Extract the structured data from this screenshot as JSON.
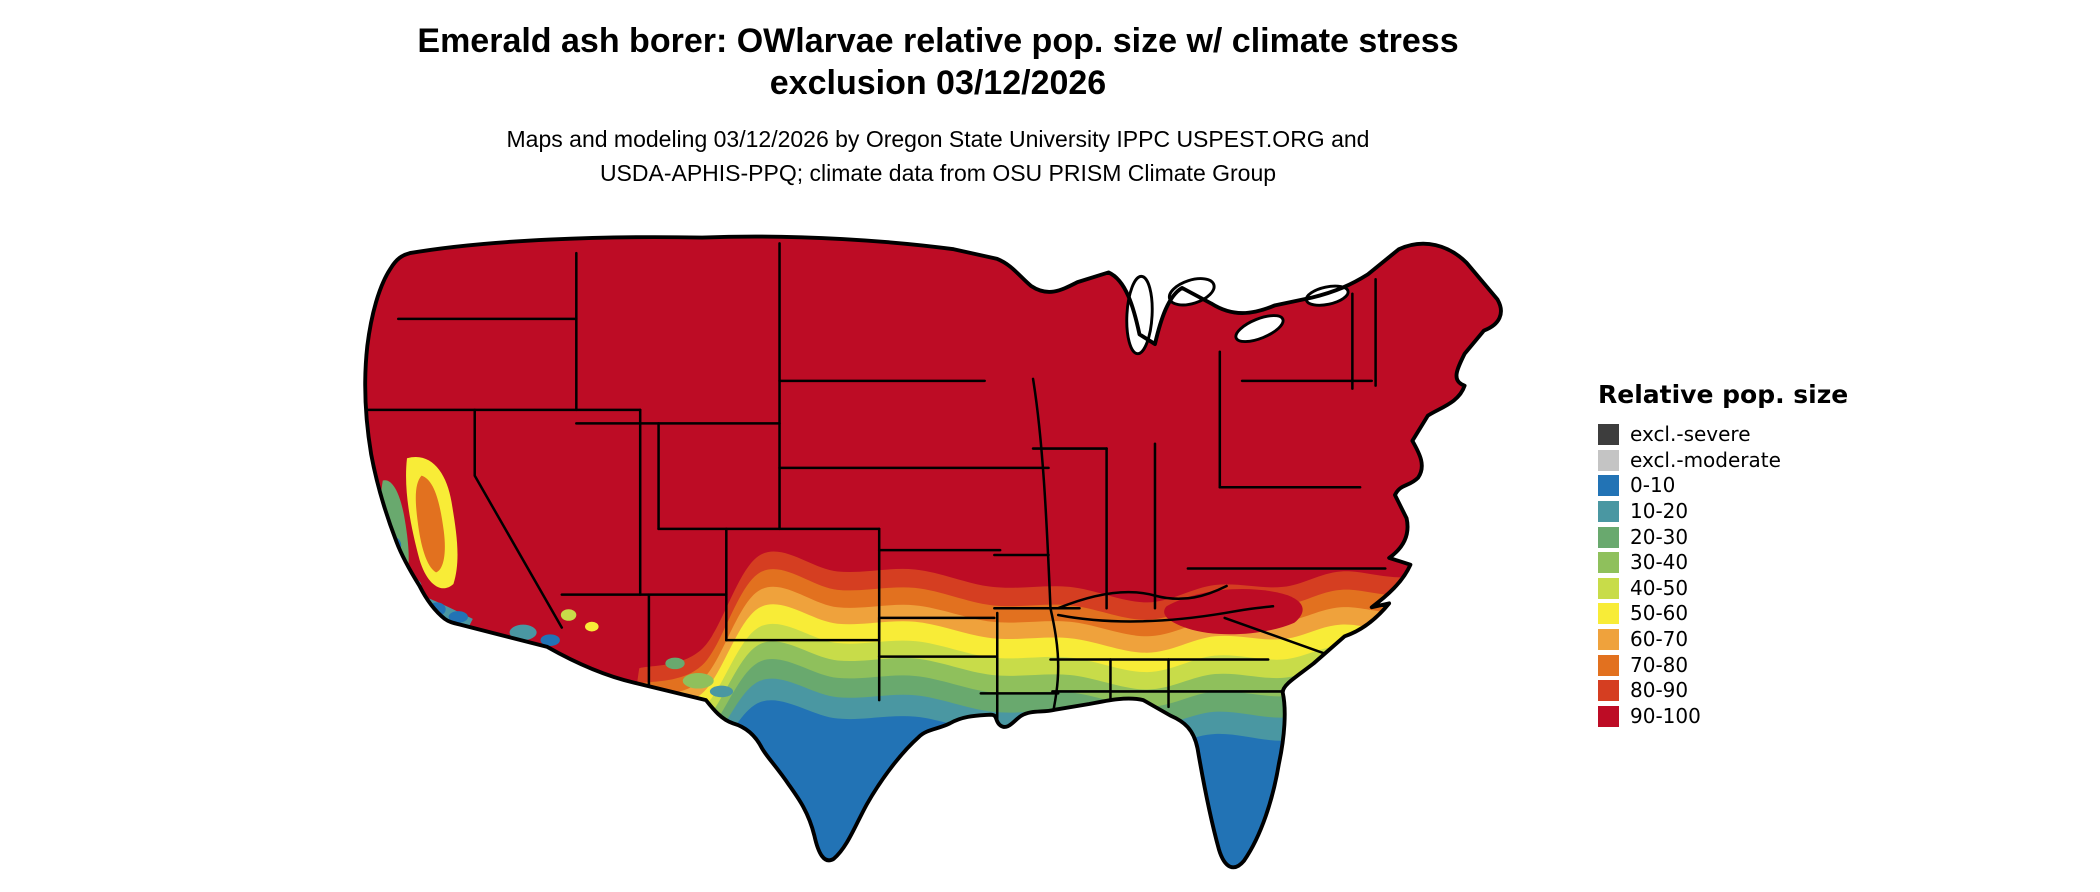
{
  "title": {
    "line1": "Emerald ash borer: OWlarvae relative pop. size w/ climate stress",
    "line2": "exclusion 03/12/2026"
  },
  "subtitle": {
    "line1": "Maps and modeling 03/12/2026 by Oregon State University IPPC USPEST.ORG and",
    "line2": "USDA-APHIS-PPQ; climate data from OSU PRISM Climate Group"
  },
  "map": {
    "area": "contiguous-united-states",
    "type": "choropleth-raster",
    "dominant_class": "90-100",
    "outline_color": "#000000",
    "water_color": "#ffffff"
  },
  "legend": {
    "title": "Relative pop. size",
    "items": [
      {
        "label": "excl.-severe",
        "color": "#3d3d3d"
      },
      {
        "label": "excl.-moderate",
        "color": "#c4c4c4"
      },
      {
        "label": "0-10",
        "color": "#2273b5"
      },
      {
        "label": "10-20",
        "color": "#4a97a2"
      },
      {
        "label": "20-30",
        "color": "#69a96e"
      },
      {
        "label": "30-40",
        "color": "#8fc05c"
      },
      {
        "label": "40-50",
        "color": "#c8dc49"
      },
      {
        "label": "50-60",
        "color": "#f8ec37"
      },
      {
        "label": "60-70",
        "color": "#efa23c"
      },
      {
        "label": "70-80",
        "color": "#e2711f"
      },
      {
        "label": "80-90",
        "color": "#d53e21"
      },
      {
        "label": "90-100",
        "color": "#bd0c25"
      }
    ]
  }
}
